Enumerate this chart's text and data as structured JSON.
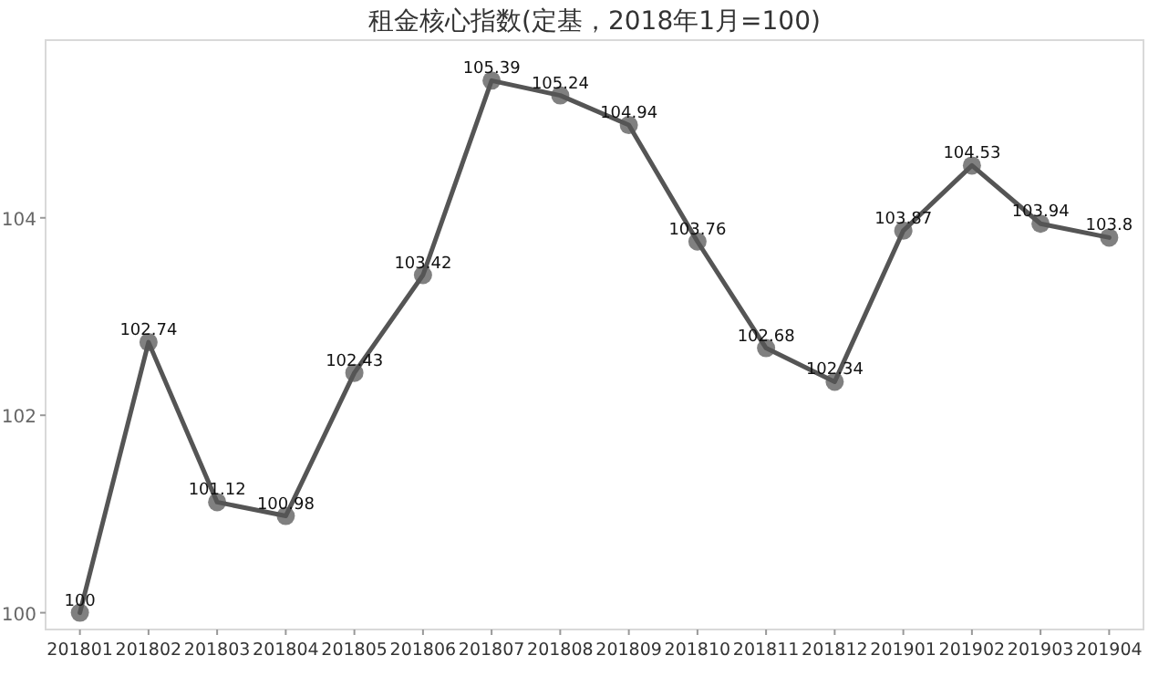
{
  "chart_data": {
    "type": "line",
    "title": "租金核心指数(定基，2018年1月=100)",
    "categories": [
      "201801",
      "201802",
      "201803",
      "201804",
      "201805",
      "201806",
      "201807",
      "201808",
      "201809",
      "201810",
      "201811",
      "201812",
      "201901",
      "201902",
      "201903",
      "201904"
    ],
    "values": [
      100,
      102.74,
      101.12,
      100.98,
      102.43,
      103.42,
      105.39,
      105.24,
      104.94,
      103.76,
      102.68,
      102.34,
      103.87,
      104.53,
      103.94,
      103.8
    ],
    "color": "#555555",
    "marker": "circle",
    "data_labels": true,
    "ylim": [
      99.83,
      105.8
    ],
    "yticks": [
      100,
      102,
      104
    ]
  }
}
